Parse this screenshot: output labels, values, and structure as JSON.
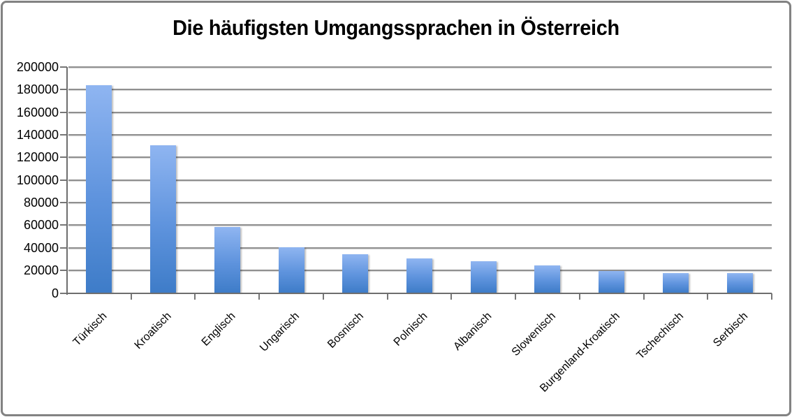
{
  "page": {
    "background": "#ffffff",
    "frame_border_color": "#828282"
  },
  "chart_data": {
    "type": "bar",
    "title": "Die häufigsten Umgangssprachen in Österreich",
    "categories": [
      "Türkisch",
      "Kroatisch",
      "Englisch",
      "Ungarisch",
      "Bosnisch",
      "Polnisch",
      "Albanisch",
      "Slowenisch",
      "Burgenland-Kroatisch",
      "Tschechisch",
      "Serbisch"
    ],
    "values": [
      184000,
      131000,
      58500,
      40500,
      34500,
      30500,
      28000,
      24500,
      19500,
      17500,
      17500
    ],
    "xlabel": "",
    "ylabel": "",
    "ylim": [
      0,
      200000
    ],
    "ytick_step": 20000,
    "ytick_labels": [
      "0",
      "20000",
      "40000",
      "60000",
      "80000",
      "100000",
      "120000",
      "140000",
      "160000",
      "180000",
      "200000"
    ],
    "grid": true,
    "legend_position": "none",
    "xlabel_rotation_deg": -45,
    "colors": {
      "bar_gradient_top": "#8fb5f1",
      "bar_gradient_bottom": "#3e7cc8",
      "gridline": "#8f8f8f",
      "axis": "#6e6e6e",
      "text": "#000000"
    }
  }
}
